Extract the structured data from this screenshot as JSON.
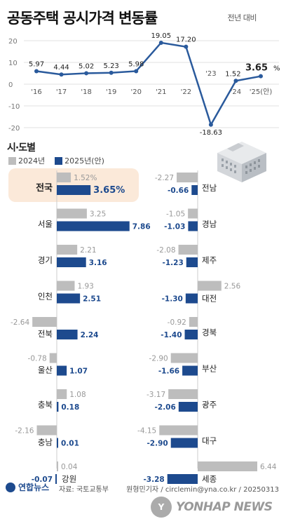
{
  "title": "공동주택 공시가격 변동률",
  "subtitle": "전년 대비",
  "chart_data": [
    {
      "type": "line",
      "x": [
        "'16",
        "'17",
        "'18",
        "'19",
        "'20",
        "'21",
        "'22",
        "'23",
        "'24",
        "'25(안)"
      ],
      "values": [
        5.97,
        4.44,
        5.02,
        5.23,
        5.98,
        19.05,
        17.2,
        -18.63,
        1.52,
        3.65
      ],
      "value_labels": [
        "5.97",
        "4.44",
        "5.02",
        "5.23",
        "5.98",
        "19.05",
        "17.20",
        "-18.63",
        "1.52",
        "3.65"
      ],
      "last_unit": "%",
      "yticks": [
        "20",
        "10",
        "0",
        "-10",
        "-20"
      ],
      "ylim": [
        -24,
        22
      ],
      "color": "#2a5a9c"
    },
    {
      "type": "bar",
      "section_title": "시·도별",
      "series": [
        {
          "name": "2024년",
          "color": "#bdbdbd"
        },
        {
          "name": "2025년(안)",
          "color": "#1d4a8e"
        }
      ],
      "left": [
        {
          "region": "전국",
          "v2024": 1.52,
          "v2025": 3.65,
          "l2024": "1.52%",
          "l2025": "3.65%"
        },
        {
          "region": "서울",
          "v2024": 3.25,
          "v2025": 7.86,
          "l2024": "3.25",
          "l2025": "7.86"
        },
        {
          "region": "경기",
          "v2024": 2.21,
          "v2025": 3.16,
          "l2024": "2.21",
          "l2025": "3.16"
        },
        {
          "region": "인천",
          "v2024": 1.93,
          "v2025": 2.51,
          "l2024": "1.93",
          "l2025": "2.51"
        },
        {
          "region": "전북",
          "v2024": -2.64,
          "v2025": 2.24,
          "l2024": "-2.64",
          "l2025": "2.24"
        },
        {
          "region": "울산",
          "v2024": -0.78,
          "v2025": 1.07,
          "l2024": "-0.78",
          "l2025": "1.07"
        },
        {
          "region": "충북",
          "v2024": 1.08,
          "v2025": 0.18,
          "l2024": "1.08",
          "l2025": "0.18"
        },
        {
          "region": "충남",
          "v2024": -2.16,
          "v2025": 0.01,
          "l2024": "-2.16",
          "l2025": "0.01"
        },
        {
          "region": "강원",
          "v2024": 0.04,
          "v2025": -0.07,
          "l2024": "0.04",
          "l2025": "-0.07"
        }
      ],
      "right": [
        {
          "region": "전남",
          "v2024": -2.27,
          "v2025": -0.66,
          "l2024": "-2.27",
          "l2025": "-0.66"
        },
        {
          "region": "경남",
          "v2024": -1.05,
          "v2025": -1.03,
          "l2024": "-1.05",
          "l2025": "-1.03"
        },
        {
          "region": "제주",
          "v2024": -2.08,
          "v2025": -1.23,
          "l2024": "-2.08",
          "l2025": "-1.23"
        },
        {
          "region": "대전",
          "v2024": 2.56,
          "v2025": -1.3,
          "l2024": "2.56",
          "l2025": "-1.30"
        },
        {
          "region": "경북",
          "v2024": -0.92,
          "v2025": -1.4,
          "l2024": "-0.92",
          "l2025": "-1.40"
        },
        {
          "region": "부산",
          "v2024": -2.9,
          "v2025": -1.66,
          "l2024": "-2.90",
          "l2025": "-1.66"
        },
        {
          "region": "광주",
          "v2024": -3.17,
          "v2025": -2.06,
          "l2024": "-3.17",
          "l2025": "-2.06"
        },
        {
          "region": "대구",
          "v2024": -4.15,
          "v2025": -2.9,
          "l2024": "-4.15",
          "l2025": "-2.90"
        },
        {
          "region": "세종",
          "v2024": 6.44,
          "v2025": -3.28,
          "l2024": "6.44",
          "l2025": "-3.28"
        }
      ]
    }
  ],
  "footer": {
    "logo": "연합뉴스",
    "source": "자료: 국토교통부",
    "credit": "원형민기자 / circlemin@yna.co.kr / 20250313",
    "watermark": "YONHAP NEWS"
  },
  "colors": {
    "c2024": "#bdbdbd",
    "c2025": "#1d4a8e",
    "line": "#2a5a9c",
    "highlight": "#fbe9d9"
  }
}
